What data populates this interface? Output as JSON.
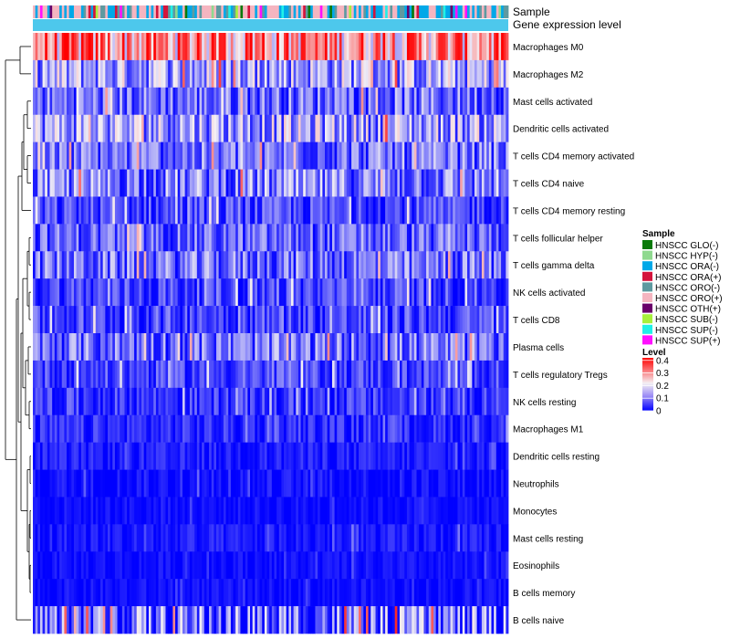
{
  "chart_data": {
    "type": "heatmap",
    "annotation_rows": [
      "Sample",
      "Gene expression level"
    ],
    "rows": [
      "Macrophages M0",
      "Macrophages M2",
      "Mast cells activated",
      "Dendritic cells activated",
      "T cells CD4 memory activated",
      "T cells CD4 naive",
      "T cells CD4 memory resting",
      "T cells follicular helper",
      "T cells gamma delta",
      "NK cells activated",
      "T cells CD8",
      "Plasma cells",
      "T cells regulatory  Tregs",
      "NK cells resting",
      "Macrophages M1",
      "Dendritic cells resting",
      "Neutrophils",
      "Monocytes",
      "Mast cells resting",
      "Eosinophils",
      "B cells memory",
      "B cells naive"
    ],
    "row_level_profile": [
      0.28,
      0.12,
      0.08,
      0.12,
      0.08,
      0.09,
      0.05,
      0.07,
      0.08,
      0.05,
      0.05,
      0.08,
      0.05,
      0.04,
      0.03,
      0.02,
      0.01,
      0.01,
      0.015,
      0.01,
      0.01,
      0.07
    ],
    "row_level_spread": [
      0.16,
      0.1,
      0.08,
      0.1,
      0.08,
      0.09,
      0.06,
      0.07,
      0.08,
      0.06,
      0.06,
      0.08,
      0.05,
      0.05,
      0.04,
      0.03,
      0.03,
      0.02,
      0.03,
      0.02,
      0.02,
      0.12
    ],
    "num_samples": 197,
    "sample_legend": {
      "title": "Sample",
      "items": [
        {
          "label": "HNSCC GLO(-)",
          "color": "#0a7a0a"
        },
        {
          "label": "HNSCC HYP(-)",
          "color": "#8fd98f"
        },
        {
          "label": "HNSCC ORA(-)",
          "color": "#00a8e8"
        },
        {
          "label": "HNSCC ORA(+)",
          "color": "#d4143c"
        },
        {
          "label": "HNSCC ORO(-)",
          "color": "#5e9aa0"
        },
        {
          "label": "HNSCC ORO(+)",
          "color": "#f5b5c0"
        },
        {
          "label": "HNSCC OTH(+)",
          "color": "#6b006b"
        },
        {
          "label": "HNSCC SUB(-)",
          "color": "#a8f03c"
        },
        {
          "label": "HNSCC SUP(-)",
          "color": "#20f0e8"
        },
        {
          "label": "HNSCC SUP(+)",
          "color": "#ff10ff"
        }
      ]
    },
    "sample_weights": [
      0.02,
      0.06,
      0.28,
      0.05,
      0.12,
      0.35,
      0.02,
      0.02,
      0.05,
      0.03
    ],
    "level_legend": {
      "title": "Level",
      "ticks": [
        0.4,
        0.3,
        0.2,
        0.1,
        0
      ],
      "tick_labels": [
        "0.4",
        "0.3",
        "0.2",
        "0.1",
        "0"
      ],
      "range": [
        0,
        0.42
      ],
      "colors": {
        "low": "#0000ff",
        "mid": "#f4f0f4",
        "high": "#ff0000",
        "mid_value": 0.18
      }
    },
    "gene_expression_bar_color": "#4dc8ec"
  }
}
